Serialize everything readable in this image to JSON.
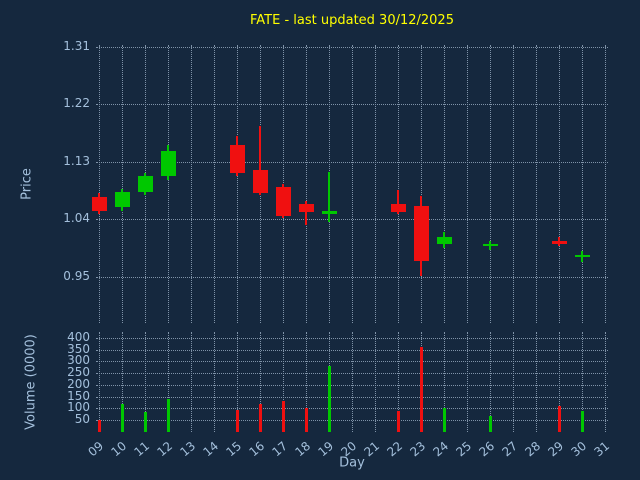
{
  "title": "FATE - last updated 30/12/2025",
  "colors": {
    "background": "#15283e",
    "title": "#ffff00",
    "tick": "#a4c0dc",
    "grid": "#7f93a8",
    "up": "#00c800",
    "down": "#f01010"
  },
  "chart_data": {
    "type": "candlestick",
    "title": "FATE - last updated 30/12/2025",
    "xlabel": "Day",
    "price_ylabel": "Price",
    "volume_ylabel": "Volume (0000)",
    "x_ticks": [
      "09",
      "10",
      "11",
      "12",
      "13",
      "14",
      "15",
      "16",
      "17",
      "18",
      "19",
      "20",
      "21",
      "22",
      "23",
      "24",
      "25",
      "26",
      "27",
      "28",
      "29",
      "30",
      "31"
    ],
    "price_ticks": [
      "1.31",
      "1.22",
      "1.13",
      "1.04",
      "0.95"
    ],
    "volume_ticks": [
      400,
      350,
      300,
      250,
      200,
      150,
      100,
      50
    ],
    "price_axis_range": [
      0.878,
      1.313
    ],
    "volume_axis_range": [
      0,
      425
    ],
    "grid": "dotted",
    "legend": "none",
    "candles": [
      {
        "day": 9,
        "open": 1.075,
        "high": 1.082,
        "low": 1.048,
        "close": 1.053,
        "volume": 50
      },
      {
        "day": 10,
        "open": 1.059,
        "high": 1.088,
        "low": 1.054,
        "close": 1.083,
        "volume": 120
      },
      {
        "day": 11,
        "open": 1.083,
        "high": 1.113,
        "low": 1.079,
        "close": 1.108,
        "volume": 85
      },
      {
        "day": 12,
        "open": 1.108,
        "high": 1.156,
        "low": 1.102,
        "close": 1.147,
        "volume": 140
      },
      {
        "day": 15,
        "open": 1.156,
        "high": 1.171,
        "low": 1.108,
        "close": 1.113,
        "volume": 95
      },
      {
        "day": 16,
        "open": 1.117,
        "high": 1.186,
        "low": 1.079,
        "close": 1.082,
        "volume": 120
      },
      {
        "day": 17,
        "open": 1.091,
        "high": 1.096,
        "low": 1.042,
        "close": 1.046,
        "volume": 130
      },
      {
        "day": 18,
        "open": 1.064,
        "high": 1.069,
        "low": 1.031,
        "close": 1.051,
        "volume": 100
      },
      {
        "day": 19,
        "open": 1.049,
        "high": 1.115,
        "low": 1.036,
        "close": 1.054,
        "volume": 280
      },
      {
        "day": 22,
        "open": 1.064,
        "high": 1.086,
        "low": 1.049,
        "close": 1.052,
        "volume": 90
      },
      {
        "day": 23,
        "open": 1.061,
        "high": 1.077,
        "low": 0.951,
        "close": 0.975,
        "volume": 360
      },
      {
        "day": 24,
        "open": 1.001,
        "high": 1.021,
        "low": 0.995,
        "close": 1.012,
        "volume": 100
      },
      {
        "day": 26,
        "open": 0.999,
        "high": 1.006,
        "low": 0.992,
        "close": 1.002,
        "volume": 70
      },
      {
        "day": 29,
        "open": 1.006,
        "high": 1.013,
        "low": 0.998,
        "close": 1.002,
        "volume": 110
      },
      {
        "day": 30,
        "open": 0.981,
        "high": 0.99,
        "low": 0.974,
        "close": 0.985,
        "volume": 90
      }
    ]
  }
}
